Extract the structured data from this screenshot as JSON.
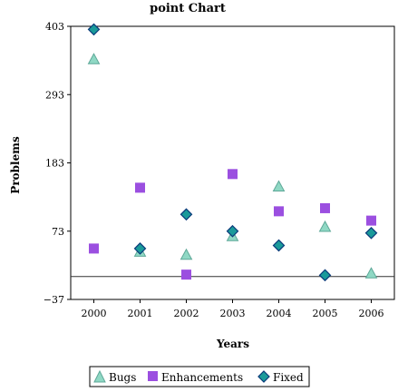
{
  "chart_data": {
    "type": "scatter",
    "title": "point Chart",
    "xlabel": "Years",
    "ylabel": "Problems",
    "x": [
      2000,
      2001,
      2002,
      2003,
      2004,
      2005,
      2006
    ],
    "xlim": [
      1999.5,
      2006.5
    ],
    "ylim": [
      -37,
      403
    ],
    "yticks": [
      403,
      293,
      183,
      73,
      -37
    ],
    "reference_line_y": 0,
    "grid": false,
    "legend_position": "bottom",
    "series": [
      {
        "name": "Bugs",
        "marker": "triangle",
        "color": "#8fd8c4",
        "values": [
          350,
          40,
          35,
          65,
          145,
          80,
          5
        ]
      },
      {
        "name": "Enhancements",
        "marker": "square",
        "color": "#9b4fe0",
        "values": [
          45,
          143,
          3,
          165,
          105,
          110,
          90
        ]
      },
      {
        "name": "Fixed",
        "marker": "diamond",
        "color": "#1a9a9a",
        "values": [
          398,
          45,
          100,
          73,
          50,
          2,
          70
        ]
      }
    ]
  }
}
